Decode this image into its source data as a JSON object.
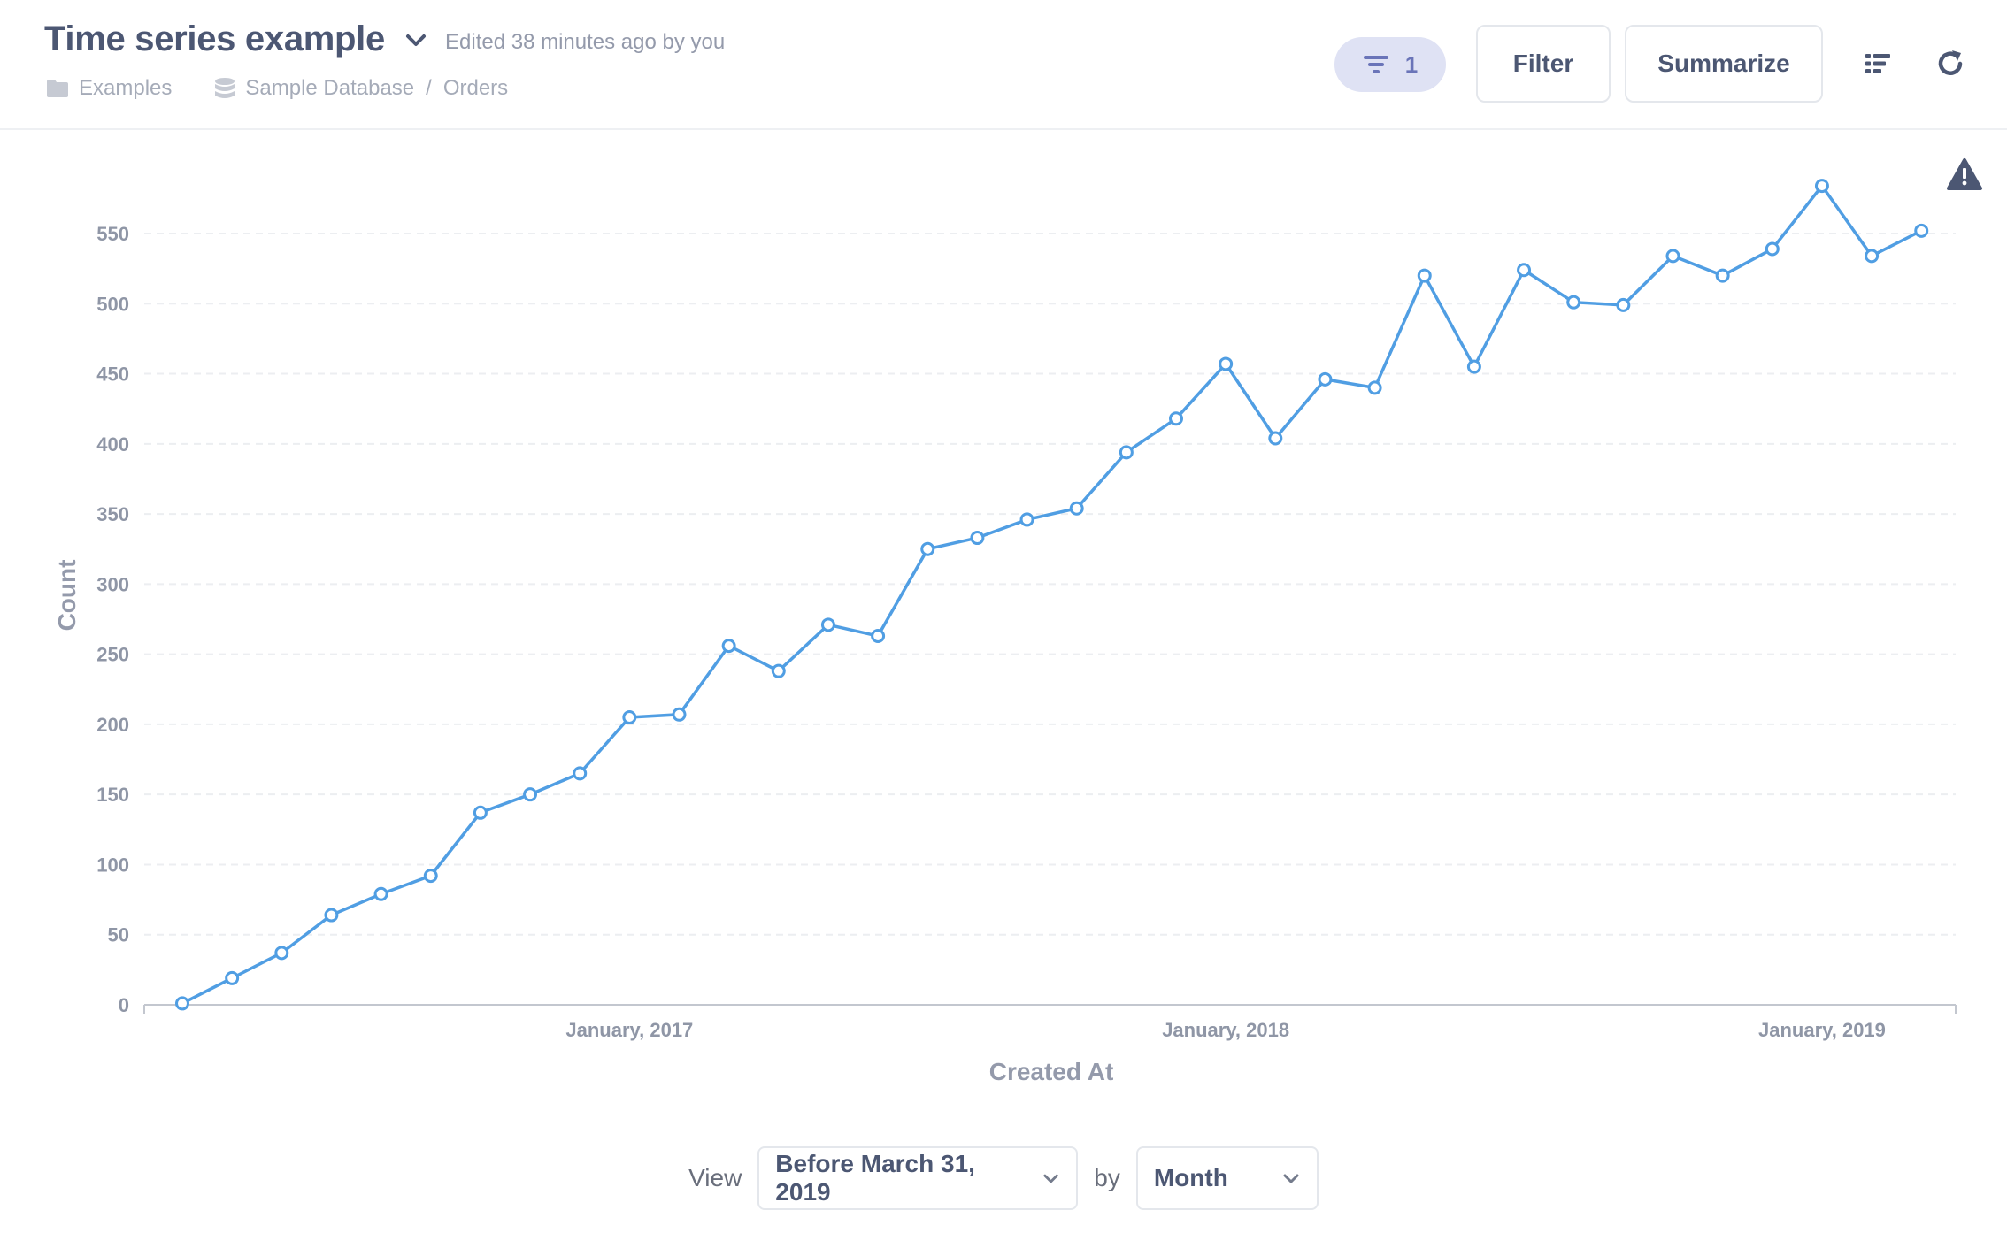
{
  "header": {
    "title": "Time series example",
    "edited": "Edited 38 minutes ago by you",
    "breadcrumbs": [
      "Examples",
      "Sample Database",
      "Orders"
    ],
    "breadcrumb_separator": "/",
    "filter_count": "1",
    "filter_label": "Filter",
    "summarize_label": "Summarize",
    "icons": [
      "chevron-down-icon",
      "folder-icon",
      "database-icon",
      "filter-icon",
      "list-icon",
      "refresh-icon",
      "warning-icon"
    ]
  },
  "chart_data": {
    "type": "line",
    "xlabel": "Created At",
    "ylabel": "Count",
    "ylim": [
      0,
      550
    ],
    "yticks": [
      0,
      50,
      100,
      150,
      200,
      250,
      300,
      350,
      400,
      450,
      500,
      550
    ],
    "xticks": [
      {
        "label": "January, 2017",
        "month": "2017-01"
      },
      {
        "label": "January, 2018",
        "month": "2018-01"
      },
      {
        "label": "January, 2019",
        "month": "2019-01"
      }
    ],
    "grid": true,
    "color": "#509ee3",
    "series": [
      {
        "x": [
          "2016-04",
          "2016-05",
          "2016-06",
          "2016-07",
          "2016-08",
          "2016-09",
          "2016-10",
          "2016-11",
          "2016-12",
          "2017-01",
          "2017-02",
          "2017-03",
          "2017-04",
          "2017-05",
          "2017-06",
          "2017-07",
          "2017-08",
          "2017-09",
          "2017-10",
          "2017-11",
          "2017-12",
          "2018-01",
          "2018-02",
          "2018-03",
          "2018-04",
          "2018-05",
          "2018-06",
          "2018-07",
          "2018-08",
          "2018-09",
          "2018-10",
          "2018-11",
          "2018-12",
          "2019-01",
          "2019-02",
          "2019-03"
        ],
        "values": [
          1,
          19,
          37,
          64,
          79,
          92,
          137,
          150,
          165,
          205,
          207,
          256,
          238,
          271,
          263,
          325,
          333,
          346,
          354,
          394,
          418,
          457,
          404,
          446,
          440,
          520,
          455,
          524,
          501,
          499,
          534,
          520,
          539,
          584,
          534,
          552
        ]
      }
    ]
  },
  "footer": {
    "view_label": "View",
    "period_value": "Before March 31, 2019",
    "by_label": "by",
    "unit_value": "Month"
  }
}
